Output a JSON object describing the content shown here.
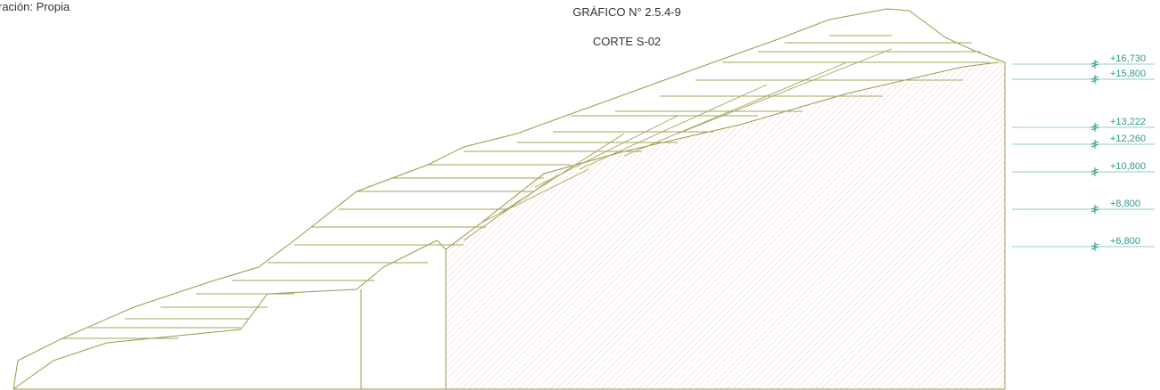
{
  "source_note": "ración: Propia",
  "title": "GRÁFICO N° 2.5.4-9",
  "subtitle": "CORTE S-02",
  "levels": [
    "+16,730",
    "+15,800",
    "+13,222",
    "+12,260",
    "+10,800",
    "+8,800",
    "+6,800"
  ]
}
